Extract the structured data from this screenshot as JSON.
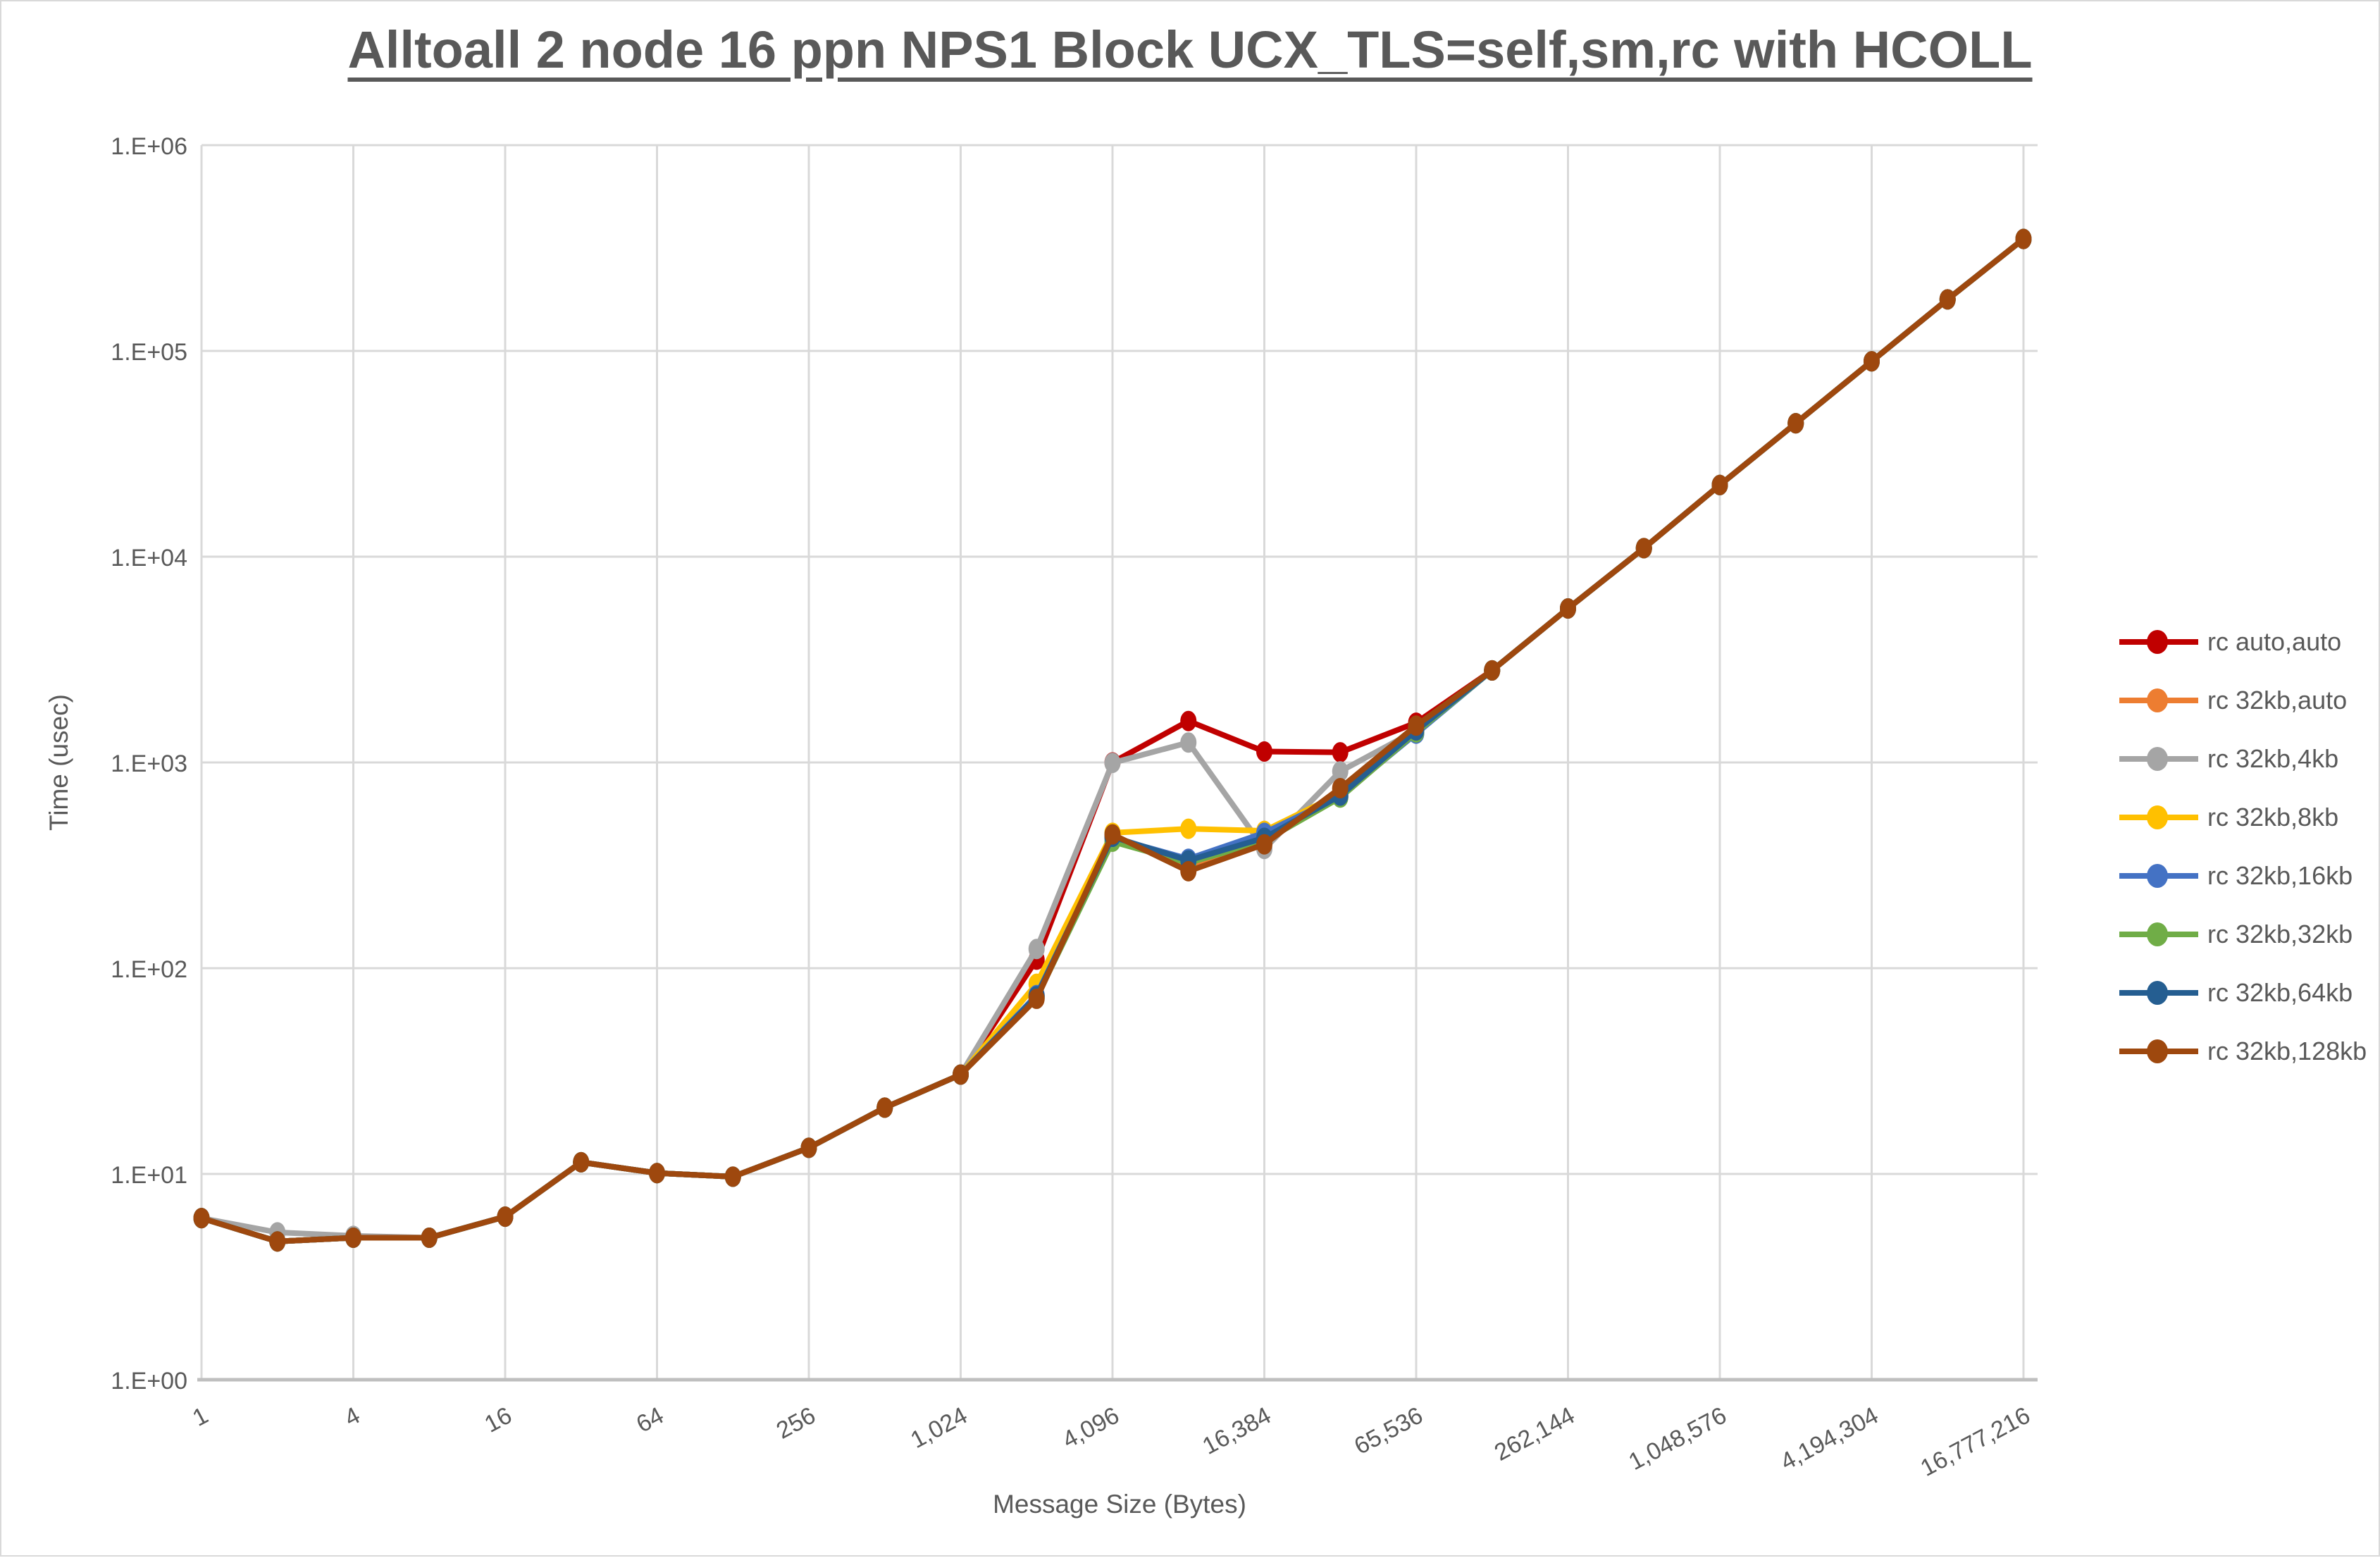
{
  "chart_data": {
    "type": "line",
    "title": "Alltoall 2 node 16 ppn NPS1 Block UCX_TLS=self,sm,rc with HCOLL",
    "xlabel": "Message Size (Bytes)",
    "ylabel": "Time (usec)",
    "x_scale": "log2",
    "y_scale": "log10",
    "xlim": [
      1,
      16777216
    ],
    "ylim": [
      1,
      1000000
    ],
    "grid": true,
    "legend_position": "right",
    "text_color": "#595959",
    "grid_color": "#d9d9d9",
    "axis_line_color": "#bfbfbf",
    "background": "#ffffff",
    "x": [
      1,
      2,
      4,
      8,
      16,
      32,
      64,
      128,
      256,
      512,
      1024,
      2048,
      4096,
      8192,
      16384,
      32768,
      65536,
      131072,
      262144,
      524288,
      1048576,
      2097152,
      4194304,
      8388608,
      16777216
    ],
    "x_ticks": [
      {
        "value": 1,
        "label": "1"
      },
      {
        "value": 4,
        "label": "4"
      },
      {
        "value": 16,
        "label": "16"
      },
      {
        "value": 64,
        "label": "64"
      },
      {
        "value": 256,
        "label": "256"
      },
      {
        "value": 1024,
        "label": "1,024"
      },
      {
        "value": 4096,
        "label": "4,096"
      },
      {
        "value": 16384,
        "label": "16,384"
      },
      {
        "value": 65536,
        "label": "65,536"
      },
      {
        "value": 262144,
        "label": "262,144"
      },
      {
        "value": 1048576,
        "label": "1,048,576"
      },
      {
        "value": 4194304,
        "label": "4,194,304"
      },
      {
        "value": 16777216,
        "label": "16,777,216"
      }
    ],
    "y_ticks": [
      {
        "value": 1,
        "label": "1.E+00"
      },
      {
        "value": 10,
        "label": "1.E+01"
      },
      {
        "value": 100,
        "label": "1.E+02"
      },
      {
        "value": 1000,
        "label": "1.E+03"
      },
      {
        "value": 10000,
        "label": "1.E+04"
      },
      {
        "value": 100000,
        "label": "1.E+05"
      },
      {
        "value": 1000000,
        "label": "1.E+06"
      }
    ],
    "series": [
      {
        "name": "rc auto,auto",
        "color": "#C00000",
        "values": [
          6.1,
          4.7,
          4.9,
          4.9,
          6.2,
          11.4,
          10.1,
          9.7,
          13.4,
          21,
          30.4,
          110,
          1000,
          1590,
          1130,
          1120,
          1560,
          2800,
          5600,
          11000,
          22300,
          44500,
          89000,
          178000,
          350000
        ]
      },
      {
        "name": "rc 32kb,auto",
        "color": "#ED7D31",
        "values": [
          6.1,
          4.7,
          4.9,
          4.9,
          6.2,
          11.4,
          10.1,
          9.7,
          13.4,
          21,
          30.4,
          73,
          440,
          305,
          405,
          740,
          1480,
          2800,
          5600,
          11000,
          22300,
          44500,
          89000,
          178000,
          350000
        ]
      },
      {
        "name": "rc 32kb,4kb",
        "color": "#A5A5A5",
        "values": [
          6.1,
          5.2,
          5.0,
          4.9,
          6.2,
          11.4,
          10.1,
          9.7,
          13.4,
          21,
          30.4,
          124,
          995,
          1250,
          380,
          905,
          1430,
          2800,
          5600,
          11000,
          22300,
          44500,
          89000,
          178000,
          350000
        ]
      },
      {
        "name": "rc 32kb,8kb",
        "color": "#FFC000",
        "values": [
          6.1,
          4.7,
          4.9,
          4.9,
          6.2,
          11.4,
          10.1,
          9.7,
          13.4,
          21,
          30.4,
          84,
          455,
          476,
          465,
          705,
          1400,
          2800,
          5600,
          11000,
          22300,
          44500,
          89000,
          178000,
          350000
        ]
      },
      {
        "name": "rc 32kb,16kb",
        "color": "#4472C4",
        "values": [
          6.1,
          4.7,
          4.9,
          4.9,
          6.2,
          11.4,
          10.1,
          9.7,
          13.4,
          21,
          30.4,
          74,
          430,
          340,
          455,
          685,
          1380,
          2800,
          5600,
          11000,
          22300,
          44500,
          89000,
          178000,
          350000
        ]
      },
      {
        "name": "rc 32kb,32kb",
        "color": "#70AD47",
        "values": [
          6.1,
          4.7,
          4.9,
          4.9,
          6.2,
          11.4,
          10.1,
          9.7,
          13.4,
          21,
          30.4,
          72,
          412,
          325,
          415,
          675,
          1400,
          2800,
          5600,
          11000,
          22300,
          44500,
          89000,
          178000,
          350000
        ]
      },
      {
        "name": "rc 32kb,64kb",
        "color": "#255E91",
        "values": [
          6.1,
          4.7,
          4.9,
          4.9,
          6.2,
          11.4,
          10.1,
          9.7,
          13.4,
          21,
          30.4,
          73,
          435,
          334,
          430,
          690,
          1430,
          2800,
          5600,
          11000,
          22300,
          44500,
          89000,
          178000,
          350000
        ]
      },
      {
        "name": "rc 32kb,128kb",
        "color": "#9E480E",
        "values": [
          6.1,
          4.7,
          4.9,
          4.9,
          6.2,
          11.4,
          10.1,
          9.7,
          13.4,
          21,
          30.4,
          71,
          447,
          296,
          400,
          750,
          1510,
          2800,
          5600,
          11000,
          22300,
          44500,
          89000,
          178000,
          350000
        ]
      }
    ]
  }
}
